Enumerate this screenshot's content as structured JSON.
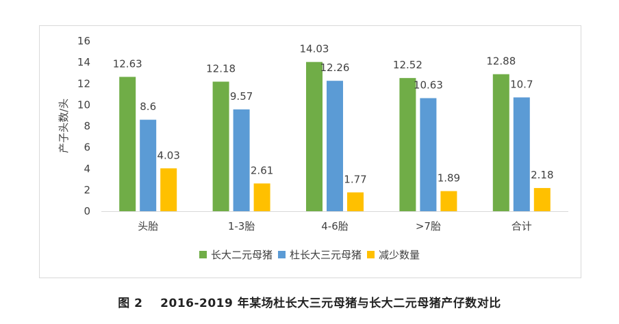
{
  "caption": {
    "number": "图 2",
    "text": "2016-2019 年某场杜长大三元母猪与长大二元母猪产仔数对比"
  },
  "chart_data": {
    "type": "bar",
    "categories": [
      "头胎",
      "1-3胎",
      "4-6胎",
      ">7胎",
      "合计"
    ],
    "series": [
      {
        "name": "长大二元母猪",
        "color": "#70ad47",
        "values": [
          12.63,
          12.18,
          14.03,
          12.52,
          12.88
        ],
        "labels": [
          "12.63",
          "12.18",
          "14.03",
          "12.52",
          "12.88"
        ]
      },
      {
        "name": "杜长大三元母猪",
        "color": "#5b9bd5",
        "values": [
          8.6,
          9.57,
          12.26,
          10.63,
          10.7
        ],
        "labels": [
          "8.6",
          "9.57",
          "12.26",
          "10.63",
          "10.7"
        ]
      },
      {
        "name": "减少数量",
        "color": "#ffc000",
        "values": [
          4.03,
          2.61,
          1.77,
          1.89,
          2.18
        ],
        "labels": [
          "4.03",
          "2.61",
          "1.77",
          "1.89",
          "2.18"
        ]
      }
    ],
    "ylabel": "产子头数/头",
    "xlabel": "",
    "ylim": [
      0,
      16
    ],
    "yticks": [
      0,
      2,
      4,
      6,
      8,
      10,
      12,
      14,
      16
    ],
    "grid": false,
    "legend_position": "bottom"
  }
}
